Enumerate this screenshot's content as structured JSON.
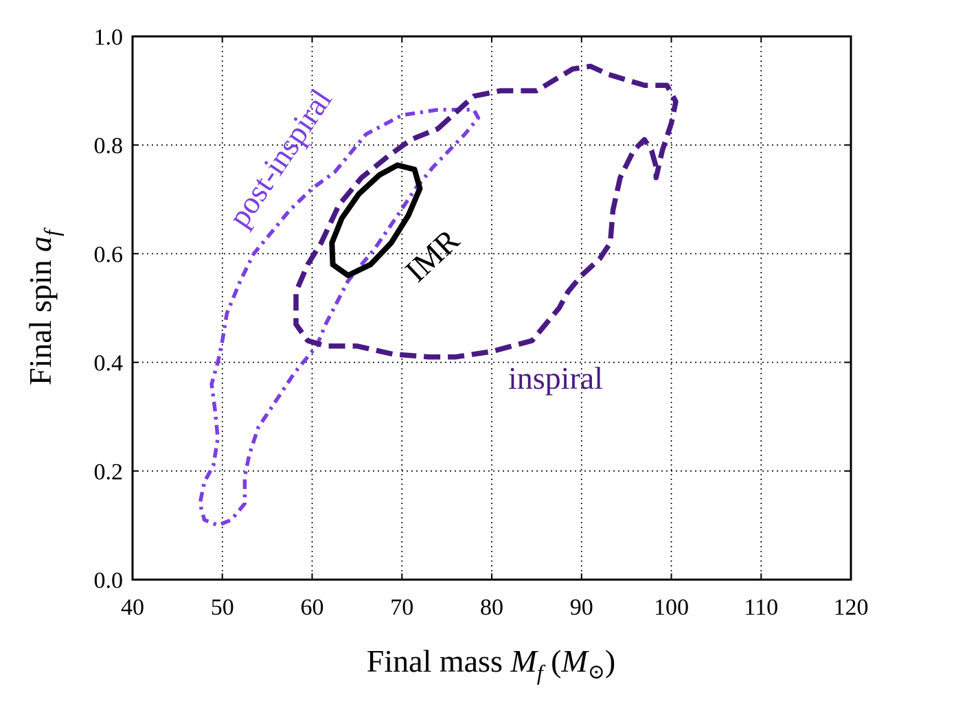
{
  "chart_data": {
    "type": "line",
    "title": "",
    "xlabel": "Final mass M_f (M_⊙)",
    "ylabel": "Final spin a_f",
    "xlim": [
      40,
      120
    ],
    "ylim": [
      0.0,
      1.0
    ],
    "x_ticks": [
      "40",
      "50",
      "60",
      "70",
      "80",
      "90",
      "100",
      "110",
      "120"
    ],
    "y_ticks": [
      "0.0",
      "0.2",
      "0.4",
      "0.6",
      "0.8",
      "1.0"
    ],
    "grid": true,
    "series": [
      {
        "name": "IMR",
        "color": "#000000",
        "style": "solid",
        "points": [
          [
            64.0,
            0.56
          ],
          [
            66.5,
            0.58
          ],
          [
            68.8,
            0.62
          ],
          [
            70.7,
            0.67
          ],
          [
            72.0,
            0.72
          ],
          [
            71.4,
            0.755
          ],
          [
            69.5,
            0.763
          ],
          [
            67.5,
            0.745
          ],
          [
            65.2,
            0.71
          ],
          [
            63.3,
            0.665
          ],
          [
            62.2,
            0.62
          ],
          [
            62.3,
            0.58
          ],
          [
            64.0,
            0.56
          ]
        ]
      },
      {
        "name": "inspiral",
        "color": "#4a1a84",
        "style": "dashed",
        "points": [
          [
            74,
            0.83
          ],
          [
            78,
            0.89
          ],
          [
            81,
            0.9
          ],
          [
            85,
            0.9
          ],
          [
            87,
            0.92
          ],
          [
            89,
            0.94
          ],
          [
            91,
            0.945
          ],
          [
            93,
            0.93
          ],
          [
            95,
            0.92
          ],
          [
            97,
            0.91
          ],
          [
            99.5,
            0.91
          ],
          [
            100.5,
            0.88
          ],
          [
            100,
            0.84
          ],
          [
            99,
            0.79
          ],
          [
            98.3,
            0.74
          ],
          [
            98.3,
            0.76
          ],
          [
            97.8,
            0.79
          ],
          [
            97,
            0.81
          ],
          [
            95.8,
            0.79
          ],
          [
            94.3,
            0.74
          ],
          [
            93.5,
            0.68
          ],
          [
            93.2,
            0.62
          ],
          [
            92,
            0.59
          ],
          [
            90,
            0.56
          ],
          [
            88.5,
            0.53
          ],
          [
            87.5,
            0.5
          ],
          [
            86,
            0.47
          ],
          [
            84.5,
            0.44
          ],
          [
            80,
            0.42
          ],
          [
            76,
            0.41
          ],
          [
            73,
            0.41
          ],
          [
            69,
            0.415
          ],
          [
            65,
            0.43
          ],
          [
            61.5,
            0.43
          ],
          [
            59.5,
            0.44
          ],
          [
            58.2,
            0.47
          ],
          [
            58.2,
            0.53
          ],
          [
            59.5,
            0.58
          ],
          [
            61,
            0.62
          ],
          [
            63,
            0.69
          ],
          [
            65.5,
            0.74
          ],
          [
            68.5,
            0.78
          ],
          [
            71,
            0.81
          ],
          [
            74,
            0.83
          ]
        ]
      },
      {
        "name": "post-inspiral",
        "color": "#7b3fe0",
        "style": "dash-dot",
        "points": [
          [
            62.5,
            0.75
          ],
          [
            66,
            0.82
          ],
          [
            70,
            0.855
          ],
          [
            74,
            0.865
          ],
          [
            78,
            0.865
          ],
          [
            78.5,
            0.85
          ],
          [
            77,
            0.82
          ],
          [
            73.5,
            0.76
          ],
          [
            71.5,
            0.72
          ],
          [
            69.5,
            0.67
          ],
          [
            67,
            0.61
          ],
          [
            64,
            0.55
          ],
          [
            61.5,
            0.47
          ],
          [
            60.5,
            0.43
          ],
          [
            58,
            0.38
          ],
          [
            56,
            0.33
          ],
          [
            54,
            0.28
          ],
          [
            53,
            0.23
          ],
          [
            52.5,
            0.19
          ],
          [
            52.5,
            0.14
          ],
          [
            51,
            0.11
          ],
          [
            49.5,
            0.1
          ],
          [
            48,
            0.11
          ],
          [
            47.5,
            0.14
          ],
          [
            48,
            0.18
          ],
          [
            49,
            0.21
          ],
          [
            49.5,
            0.26
          ],
          [
            49.2,
            0.31
          ],
          [
            48.8,
            0.36
          ],
          [
            49.5,
            0.4
          ],
          [
            50,
            0.44
          ],
          [
            50.5,
            0.49
          ],
          [
            52,
            0.55
          ],
          [
            53.5,
            0.6
          ],
          [
            55.5,
            0.64
          ],
          [
            57.5,
            0.68
          ],
          [
            60,
            0.72
          ],
          [
            62.5,
            0.75
          ]
        ]
      }
    ],
    "annotations": [
      {
        "text": "IMR",
        "color": "#000000"
      },
      {
        "text": "inspiral",
        "color": "#4a1a84"
      },
      {
        "text": "post-inspiral",
        "color": "#7b3fe0"
      }
    ]
  }
}
